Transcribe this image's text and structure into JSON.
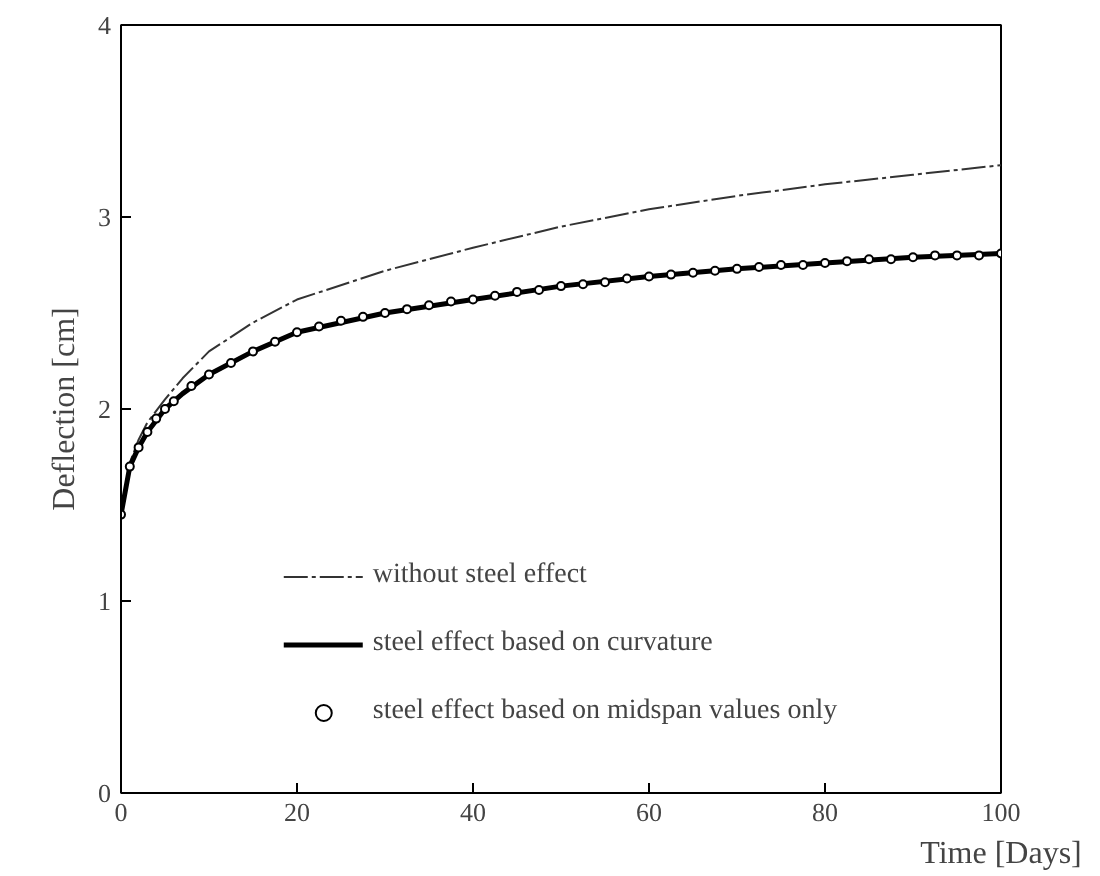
{
  "chart_data": {
    "type": "line",
    "xlabel": "Time [Days]",
    "ylabel": "Deflection [cm]",
    "xlim": [
      0,
      100
    ],
    "xticks": [
      0,
      20,
      40,
      60,
      80,
      100
    ],
    "ylim": [
      0,
      4
    ],
    "yticks": [
      0,
      1,
      2,
      3,
      4
    ],
    "grid": false,
    "legend": "bottom",
    "series": [
      {
        "name": "without steel effect",
        "color": "#333333",
        "line_style": "dashed",
        "marker": "none",
        "x": [
          0,
          1,
          2,
          3,
          5,
          7,
          10,
          15,
          20,
          30,
          40,
          50,
          60,
          70,
          80,
          90,
          100
        ],
        "values": [
          1.45,
          1.72,
          1.84,
          1.93,
          2.05,
          2.16,
          2.3,
          2.45,
          2.57,
          2.72,
          2.84,
          2.95,
          3.04,
          3.11,
          3.17,
          3.22,
          3.27
        ]
      },
      {
        "name": "steel effect based on curvature",
        "color": "#000000",
        "line_style": "solid",
        "marker": "none",
        "x": [
          0,
          1,
          2,
          3,
          5,
          7,
          10,
          15,
          20,
          30,
          40,
          50,
          60,
          70,
          80,
          90,
          100
        ],
        "values": [
          1.45,
          1.7,
          1.8,
          1.88,
          2.0,
          2.08,
          2.18,
          2.3,
          2.4,
          2.5,
          2.57,
          2.64,
          2.69,
          2.73,
          2.76,
          2.79,
          2.81
        ]
      },
      {
        "name": "steel effect based on midspan values only",
        "type": "scatter",
        "color": "#000000",
        "marker": "circle",
        "x": [
          0,
          1,
          2,
          3,
          4,
          5,
          6,
          8,
          10,
          12.5,
          15,
          17.5,
          20,
          22.5,
          25,
          27.5,
          30,
          32.5,
          35,
          37.5,
          40,
          42.5,
          45,
          47.5,
          50,
          52.5,
          55,
          57.5,
          60,
          62.5,
          65,
          67.5,
          70,
          72.5,
          75,
          77.5,
          80,
          82.5,
          85,
          87.5,
          90,
          92.5,
          95,
          97.5,
          100
        ],
        "values": [
          1.45,
          1.7,
          1.8,
          1.88,
          1.95,
          2.0,
          2.04,
          2.12,
          2.18,
          2.24,
          2.3,
          2.35,
          2.4,
          2.43,
          2.46,
          2.48,
          2.5,
          2.52,
          2.54,
          2.56,
          2.57,
          2.59,
          2.61,
          2.62,
          2.64,
          2.65,
          2.66,
          2.68,
          2.69,
          2.7,
          2.71,
          2.72,
          2.73,
          2.74,
          2.75,
          2.75,
          2.76,
          2.77,
          2.78,
          2.78,
          2.79,
          2.8,
          2.8,
          2.8,
          2.81
        ]
      }
    ]
  }
}
